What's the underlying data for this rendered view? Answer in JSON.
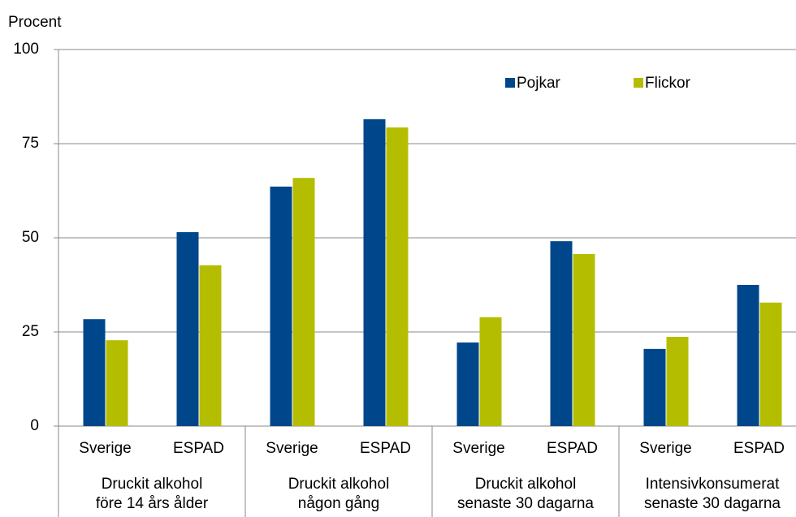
{
  "chart_data": {
    "type": "bar",
    "y_label": "Procent",
    "categories": [
      "Sverige",
      "ESPAD",
      "Sverige",
      "ESPAD",
      "Sverige",
      "ESPAD",
      "Sverige",
      "ESPAD"
    ],
    "groups": [
      [
        "Druckit alkohol",
        "före 14 års ålder"
      ],
      [
        "Druckit alkohol",
        "någon gång"
      ],
      [
        "Druckit alkohol",
        "senaste 30 dagarna"
      ],
      [
        "Intensivkonsumerat",
        "senaste 30 dagarna"
      ]
    ],
    "series": [
      {
        "name": "Pojkar",
        "color": "#00468b",
        "values": [
          28.4,
          51.5,
          63.6,
          81.5,
          22.2,
          49.1,
          20.5,
          37.5
        ]
      },
      {
        "name": "Flickor",
        "color": "#b5bd00",
        "values": [
          22.8,
          42.7,
          65.9,
          79.3,
          28.9,
          45.7,
          23.7,
          32.8
        ]
      }
    ],
    "ylim": [
      0,
      100
    ],
    "yticks": [
      0,
      25,
      50,
      75,
      100
    ],
    "grid": true
  }
}
